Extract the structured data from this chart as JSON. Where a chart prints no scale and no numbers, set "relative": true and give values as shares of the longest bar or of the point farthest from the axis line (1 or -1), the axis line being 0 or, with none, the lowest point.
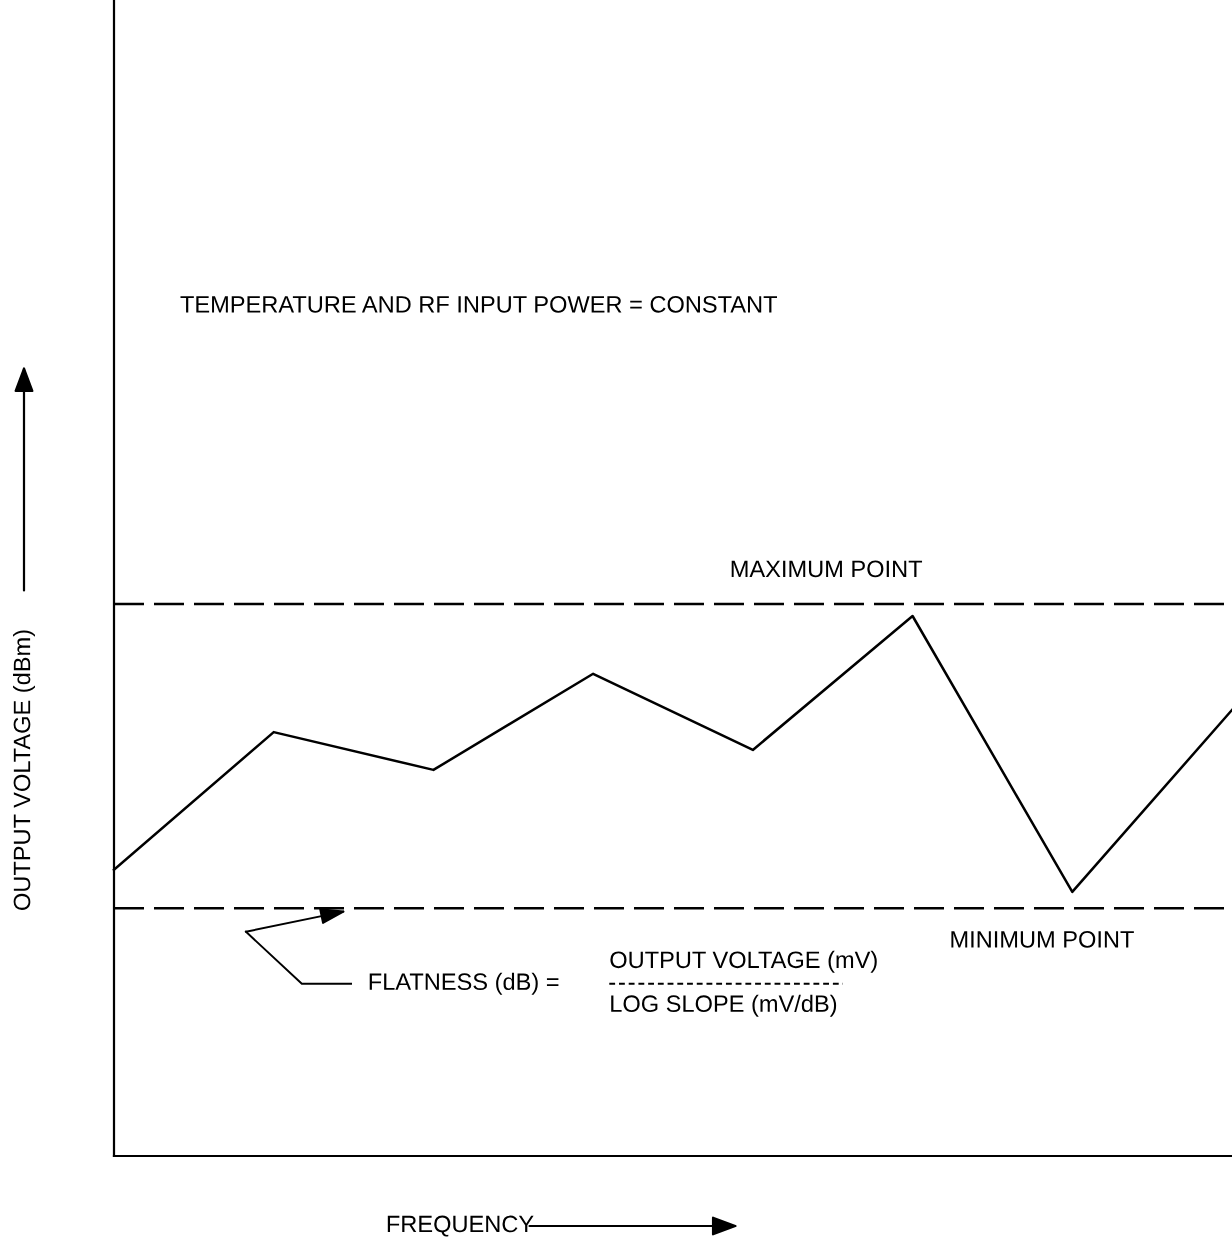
{
  "chart_data": {
    "type": "line",
    "relative": true,
    "xlabel": "FREQUENCY",
    "ylabel": "OUTPUT VOLTAGE (dBm)",
    "categories": [
      null,
      null,
      null,
      null,
      null,
      null,
      null,
      null
    ],
    "series": [
      {
        "color": "#000000",
        "values": [
          0.53,
          0.785,
          0.715,
          0.893,
          0.752,
          1.0,
          0.489,
          0.826
        ]
      }
    ],
    "ref_lines": [
      {
        "axis": "y",
        "value": 1.022,
        "label": "MAXIMUM POINT",
        "color": "#000000",
        "line_style": "dashed"
      },
      {
        "axis": "y",
        "value": 0.459,
        "label": "MINIMUM POINT",
        "color": "#000000",
        "line_style": "dashed"
      }
    ],
    "annotations": [
      "TEMPERATURE AND RF INPUT POWER = CONSTANT",
      "FLATNESS (dB) =",
      "OUTPUT VOLTAGE (mV)",
      "LOG SLOPE (mV/dB)"
    ],
    "marker": "none",
    "line_style": "solid"
  }
}
